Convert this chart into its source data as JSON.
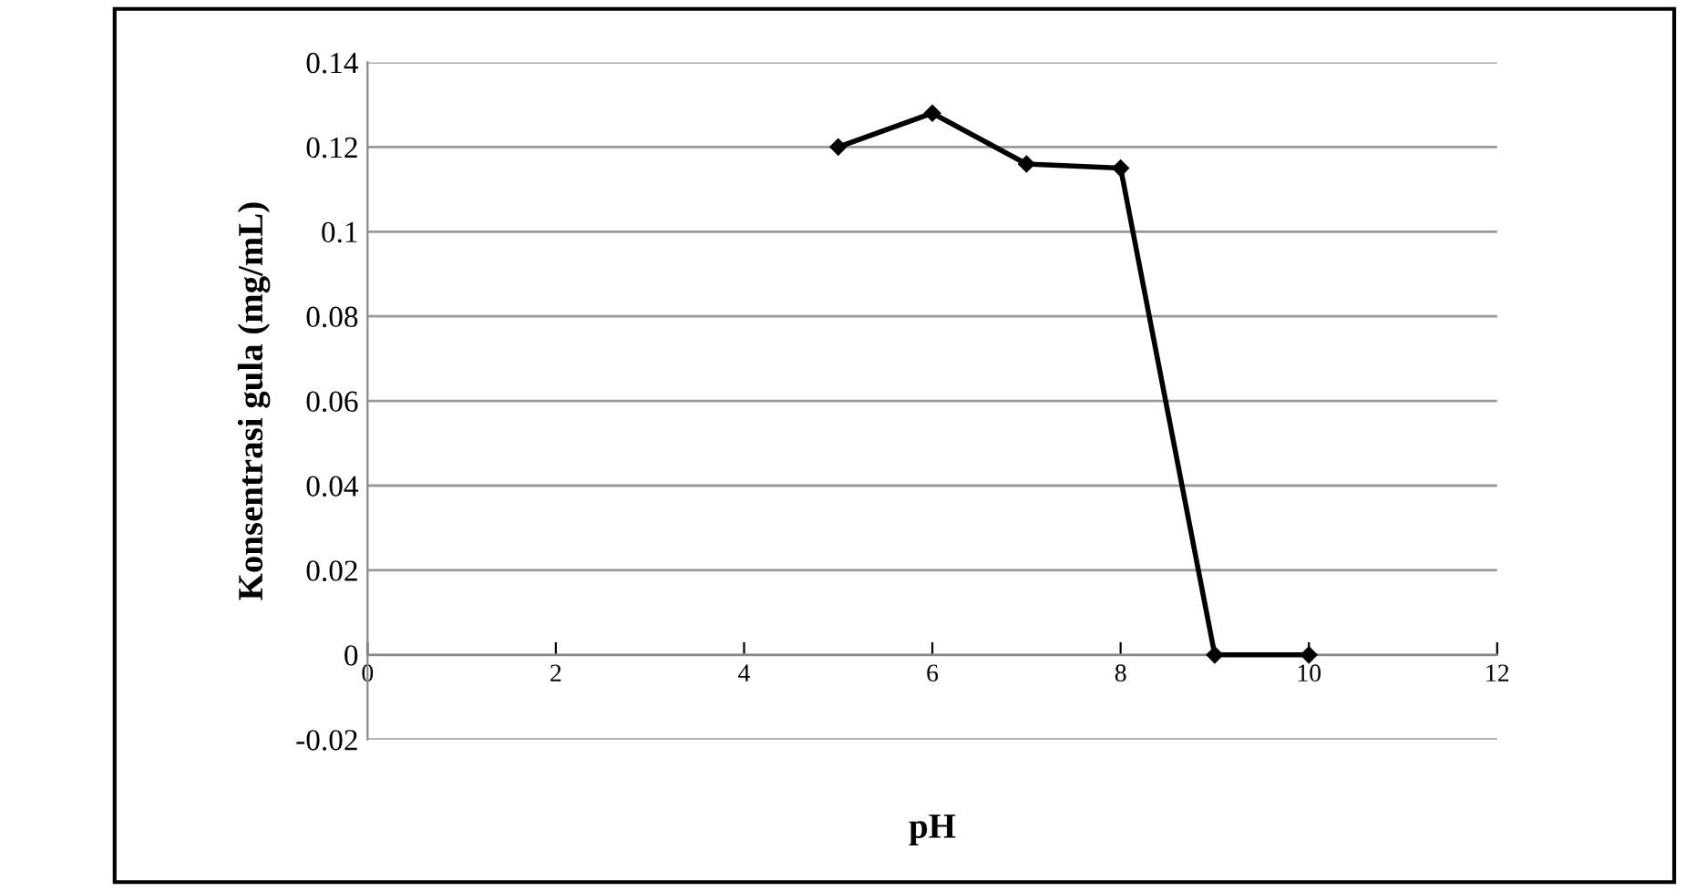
{
  "chart_data": {
    "type": "line",
    "xlabel": "pH",
    "ylabel": "Konsentrasi gula (mg/mL)",
    "x": [
      5,
      6,
      7,
      8,
      9,
      10
    ],
    "series": [
      {
        "color": "#000000",
        "values": [
          0.12,
          0.128,
          0.116,
          0.115,
          0,
          0
        ]
      }
    ],
    "xlim": [
      0,
      12
    ],
    "xticks": [
      0,
      2,
      4,
      6,
      8,
      10,
      12
    ],
    "ylim": [
      -0.02,
      0.14
    ],
    "yticks": [
      -0.02,
      0,
      0.02,
      0.04,
      0.06,
      0.08,
      0.1,
      0.12,
      0.14
    ],
    "grid": "y",
    "marker": "diamond",
    "line_style": "solid"
  }
}
